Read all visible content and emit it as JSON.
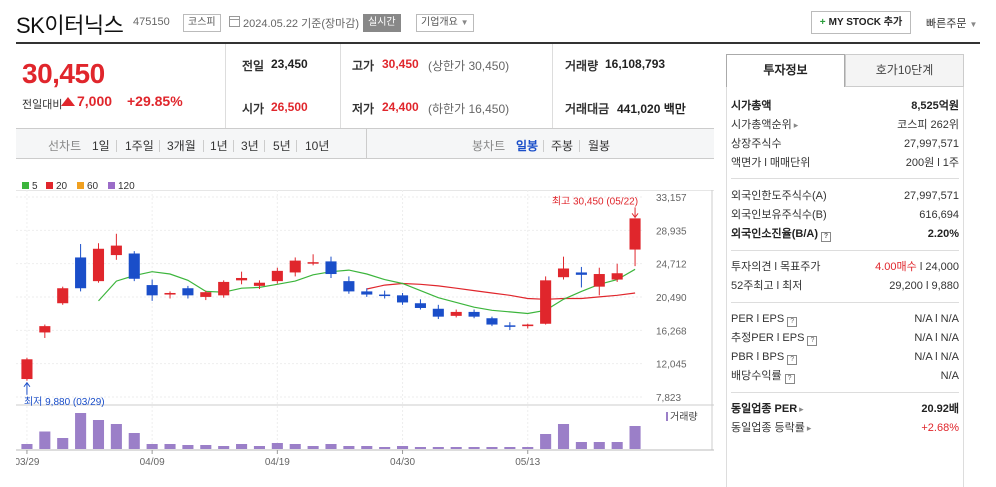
{
  "header": {
    "name": "SK이터닉스",
    "code": "475150",
    "market": "코스피",
    "date_line": "2024.05.22 기준(장마감)",
    "realtime_label": "실시간",
    "corp_label": "기업개요",
    "mystock_label": "MY STOCK 추가",
    "quick_order": "빠른주문"
  },
  "price": {
    "current": "30,450",
    "change_label": "전일대비",
    "change_amount": "7,000",
    "change_pct": "+29.85%",
    "prev_label": "전일",
    "prev": "23,450",
    "high_label": "고가",
    "high": "30,450",
    "upper_limit": "(상한가 30,450)",
    "volume_label": "거래량",
    "volume": "16,108,793",
    "open_label": "시가",
    "open": "26,500",
    "low_label": "저가",
    "low": "24,400",
    "lower_limit": "(하한가 16,450)",
    "amount_label": "거래대금",
    "amount": "441,020 백만"
  },
  "toolbar": {
    "line_label": "선차트",
    "periods": [
      "1일",
      "1주일",
      "3개월",
      "1년",
      "3년",
      "5년",
      "10년"
    ],
    "candle_label": "봉차트",
    "candles": [
      "일봉",
      "주봉",
      "월봉"
    ]
  },
  "legend": [
    {
      "label": "5",
      "color": "#3cb53c"
    },
    {
      "label": "20",
      "color": "#e0262c"
    },
    {
      "label": "60",
      "color": "#f0a020"
    },
    {
      "label": "120",
      "color": "#9b6cc8"
    }
  ],
  "chart_data": {
    "type": "candlestick",
    "y_ticks": [
      "33,157",
      "28,935",
      "24,712",
      "20,490",
      "16,268",
      "12,045",
      "7,823"
    ],
    "y_tick_values": [
      33157,
      28935,
      24712,
      20490,
      16268,
      12045,
      7823
    ],
    "x_ticks": [
      "03/29",
      "04/09",
      "04/19",
      "04/30",
      "05/13"
    ],
    "x_tick_index": [
      0,
      7,
      14,
      21,
      28
    ],
    "high_annotation": "최고 30,450 (05/22)",
    "low_annotation": "최저 9,880 (03/29)",
    "volume_label": "거래량",
    "candles": [
      {
        "o": 10100,
        "h": 12800,
        "l": 9880,
        "c": 12600
      },
      {
        "o": 16000,
        "h": 17000,
        "l": 15300,
        "c": 16800
      },
      {
        "o": 19700,
        "h": 21800,
        "l": 19500,
        "c": 21600
      },
      {
        "o": 25500,
        "h": 27200,
        "l": 21200,
        "c": 21600
      },
      {
        "o": 22500,
        "h": 27300,
        "l": 22300,
        "c": 26600
      },
      {
        "o": 25800,
        "h": 28500,
        "l": 25200,
        "c": 27000
      },
      {
        "o": 26000,
        "h": 26300,
        "l": 22500,
        "c": 22800
      },
      {
        "o": 22000,
        "h": 22700,
        "l": 20000,
        "c": 20700
      },
      {
        "o": 20800,
        "h": 21200,
        "l": 20300,
        "c": 21000
      },
      {
        "o": 21600,
        "h": 21900,
        "l": 20300,
        "c": 20700
      },
      {
        "o": 20500,
        "h": 21300,
        "l": 20100,
        "c": 21100
      },
      {
        "o": 20700,
        "h": 22600,
        "l": 20400,
        "c": 22400
      },
      {
        "o": 22600,
        "h": 23700,
        "l": 22100,
        "c": 22900
      },
      {
        "o": 21900,
        "h": 22600,
        "l": 21500,
        "c": 22300
      },
      {
        "o": 22500,
        "h": 24200,
        "l": 22200,
        "c": 23800
      },
      {
        "o": 23600,
        "h": 25500,
        "l": 23100,
        "c": 25100
      },
      {
        "o": 24800,
        "h": 25900,
        "l": 24500,
        "c": 24900
      },
      {
        "o": 25000,
        "h": 25600,
        "l": 22900,
        "c": 23400
      },
      {
        "o": 22500,
        "h": 23100,
        "l": 20900,
        "c": 21200
      },
      {
        "o": 21200,
        "h": 21600,
        "l": 20500,
        "c": 20800
      },
      {
        "o": 20800,
        "h": 21300,
        "l": 20300,
        "c": 20700
      },
      {
        "o": 20700,
        "h": 21000,
        "l": 19500,
        "c": 19800
      },
      {
        "o": 19700,
        "h": 20200,
        "l": 18900,
        "c": 19100
      },
      {
        "o": 19000,
        "h": 19500,
        "l": 17700,
        "c": 18000
      },
      {
        "o": 18100,
        "h": 18900,
        "l": 17900,
        "c": 18600
      },
      {
        "o": 18600,
        "h": 18900,
        "l": 17800,
        "c": 18000
      },
      {
        "o": 17800,
        "h": 18000,
        "l": 16800,
        "c": 17000
      },
      {
        "o": 16900,
        "h": 17300,
        "l": 16300,
        "c": 16800
      },
      {
        "o": 16800,
        "h": 17100,
        "l": 16500,
        "c": 17000
      },
      {
        "o": 17100,
        "h": 23100,
        "l": 17000,
        "c": 22600
      },
      {
        "o": 23000,
        "h": 25600,
        "l": 22700,
        "c": 24100
      },
      {
        "o": 23600,
        "h": 24300,
        "l": 21700,
        "c": 23300
      },
      {
        "o": 21800,
        "h": 24200,
        "l": 20700,
        "c": 23400
      },
      {
        "o": 22700,
        "h": 24700,
        "l": 22400,
        "c": 23500
      },
      {
        "o": 26500,
        "h": 30450,
        "l": 24400,
        "c": 30450
      }
    ],
    "ma5": [
      null,
      null,
      null,
      null,
      20000,
      22500,
      23200,
      23700,
      23400,
      22600,
      21200,
      21100,
      21600,
      21700,
      22100,
      22500,
      23300,
      23700,
      23900,
      23400,
      22700,
      22200,
      21300,
      20400,
      19800,
      19200,
      18800,
      18600,
      18400,
      18800,
      20200,
      21200,
      22100,
      22700,
      24000
    ],
    "ma20": [
      null,
      null,
      null,
      null,
      null,
      null,
      null,
      null,
      null,
      null,
      null,
      null,
      null,
      null,
      null,
      null,
      null,
      null,
      null,
      21500,
      22000,
      22200,
      22100,
      21900,
      21600,
      21300,
      21000,
      20700,
      20300,
      20200,
      20300,
      20300,
      20500,
      20700,
      21000
    ],
    "volume": [
      10,
      35,
      22,
      72,
      58,
      50,
      32,
      10,
      10,
      8,
      8,
      6,
      10,
      6,
      12,
      10,
      6,
      10,
      6,
      6,
      4,
      6,
      4,
      4,
      4,
      4,
      4,
      4,
      4,
      30,
      50,
      14,
      14,
      14,
      46
    ]
  },
  "panel": {
    "tab_active": "투자정보",
    "tab_inactive": "호가10단계",
    "market_cap_label": "시가총액",
    "market_cap": "8,525억원",
    "cap_rank_label": "시가총액순위",
    "cap_rank": "코스피 262위",
    "shares_label": "상장주식수",
    "shares": "27,997,571",
    "par_label": "액면가 l 매매단위",
    "par": "200원 l 1주",
    "foreign_limit_label": "외국인한도주식수(A)",
    "foreign_limit": "27,997,571",
    "foreign_hold_label": "외국인보유주식수(B)",
    "foreign_hold": "616,694",
    "foreign_ratio_label": "외국인소진율(B/A)",
    "foreign_ratio": "2.20%",
    "opinion_label": "투자의견 l 목표주가",
    "opinion": "4.00매수",
    "target": "24,000",
    "week52_label": "52주최고 l 최저",
    "week52": "29,200 l 9,880",
    "per_label": "PER l EPS",
    "per": "N/A l N/A",
    "est_per_label": "추정PER l EPS",
    "est_per": "N/A l N/A",
    "pbr_label": "PBR l BPS",
    "pbr": "N/A l N/A",
    "div_label": "배당수익률",
    "div": "N/A",
    "sector_per_label": "동일업종 PER",
    "sector_per": "20.92배",
    "sector_rate_label": "동일업종 등락률",
    "sector_rate": "+2.68%"
  }
}
